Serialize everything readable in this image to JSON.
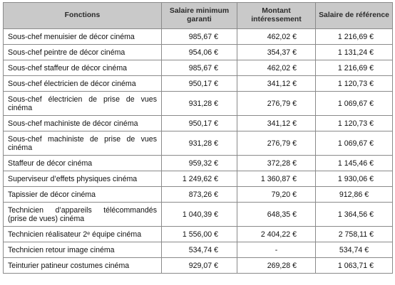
{
  "headers": {
    "fonctions": "Fonctions",
    "salaire_min": "Salaire minimum garanti",
    "montant": "Montant intéressement",
    "salaire_ref": "Salaire de référence"
  },
  "rows": [
    {
      "fonction": "Sous-chef menuisier de décor cinéma",
      "salaire_min": "985,67 €",
      "montant": "462,02 €",
      "salaire_ref": "1 216,69 €"
    },
    {
      "fonction": "Sous-chef peintre de décor cinéma",
      "salaire_min": "954,06 €",
      "montant": "354,37 €",
      "salaire_ref": "1 131,24 €"
    },
    {
      "fonction": "Sous-chef staffeur de décor cinéma",
      "salaire_min": "985,67 €",
      "montant": "462,02 €",
      "salaire_ref": "1 216,69 €"
    },
    {
      "fonction": "Sous-chef électricien de décor cinéma",
      "salaire_min": "950,17 €",
      "montant": "341,12 €",
      "salaire_ref": "1 120,73 €"
    },
    {
      "fonction": "Sous-chef électricien de prise de vues cinéma",
      "salaire_min": "931,28 €",
      "montant": "276,79 €",
      "salaire_ref": "1 069,67 €"
    },
    {
      "fonction": "Sous-chef machiniste de décor cinéma",
      "salaire_min": "950,17 €",
      "montant": "341,12 €",
      "salaire_ref": "1 120,73 €"
    },
    {
      "fonction": "Sous-chef machiniste de prise de vues cinéma",
      "salaire_min": "931,28 €",
      "montant": "276,79 €",
      "salaire_ref": "1 069,67 €"
    },
    {
      "fonction": "Staffeur de décor cinéma",
      "salaire_min": "959,32 €",
      "montant": "372,28 €",
      "salaire_ref": "1 145,46 €"
    },
    {
      "fonction": "Superviseur d’effets physiques cinéma",
      "salaire_min": "1 249,62 €",
      "montant": "1 360,87 €",
      "salaire_ref": "1 930,06 €"
    },
    {
      "fonction": "Tapissier de décor cinéma",
      "salaire_min": "873,26 €",
      "montant": "79,20 €",
      "salaire_ref": "912,86 €"
    },
    {
      "fonction": "Technicien d’appareils télécommandés (prise de vues) cinéma",
      "salaire_min": "1 040,39 €",
      "montant": "648,35 €",
      "salaire_ref": "1 364,56 €"
    },
    {
      "fonction": "Technicien réalisateur 2ᵉ équipe cinéma",
      "salaire_min": "1 556,00 €",
      "montant": "2 404,22 €",
      "salaire_ref": "2 758,11 €"
    },
    {
      "fonction": "Technicien retour image cinéma",
      "salaire_min": "534,74 €",
      "montant": "-",
      "salaire_ref": "534,74 €"
    },
    {
      "fonction": "Teinturier patineur costumes cinéma",
      "salaire_min": "929,07 €",
      "montant": "269,28 €",
      "salaire_ref": "1 063,71 €"
    }
  ]
}
